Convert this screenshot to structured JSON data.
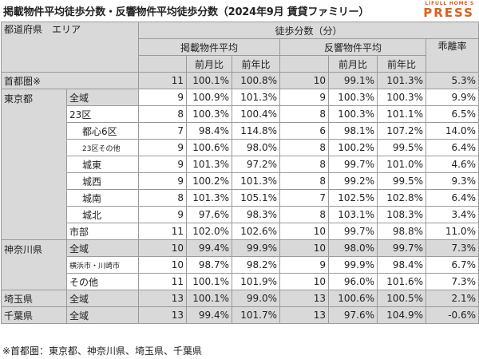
{
  "title": "掲載物件平均徒歩分数・反響物件平均徒歩分数（2024年9月 賃貸ファミリー）",
  "logo": {
    "line1": "LIFULL HOME'S",
    "line2": "PRESS"
  },
  "headers": {
    "region": "都道府県　エリア",
    "walk_minutes": "徒歩分数（分）",
    "listing_avg": "掲載物件平均",
    "response_avg": "反響物件平均",
    "divergence": "乖離率",
    "mom": "前月比",
    "yoy": "前年比"
  },
  "rows": [
    {
      "pref": "首都圏※",
      "area": "",
      "l": "11",
      "lm": "100.1%",
      "ly": "100.8%",
      "r": "10",
      "rm": "99.1%",
      "ry": "101.3%",
      "d": "5.3%"
    },
    {
      "pref": "東京都",
      "area": "全域",
      "l": "9",
      "lm": "100.9%",
      "ly": "101.3%",
      "r": "9",
      "rm": "100.3%",
      "ry": "100.3%",
      "d": "9.9%"
    },
    {
      "pref": "",
      "area": "23区",
      "l": "8",
      "lm": "100.3%",
      "ly": "100.4%",
      "r": "8",
      "rm": "100.3%",
      "ry": "101.1%",
      "d": "6.5%"
    },
    {
      "pref": "",
      "area": "都心6区",
      "l": "7",
      "lm": "98.4%",
      "ly": "114.8%",
      "r": "6",
      "rm": "98.1%",
      "ry": "107.2%",
      "d": "14.0%"
    },
    {
      "pref": "",
      "area": "23区その他",
      "l": "9",
      "lm": "100.6%",
      "ly": "98.0%",
      "r": "8",
      "rm": "100.2%",
      "ry": "99.5%",
      "d": "6.4%"
    },
    {
      "pref": "",
      "area": "城東",
      "l": "9",
      "lm": "101.3%",
      "ly": "97.2%",
      "r": "8",
      "rm": "99.7%",
      "ry": "101.0%",
      "d": "4.6%"
    },
    {
      "pref": "",
      "area": "城西",
      "l": "9",
      "lm": "100.2%",
      "ly": "101.3%",
      "r": "8",
      "rm": "99.2%",
      "ry": "99.5%",
      "d": "9.3%"
    },
    {
      "pref": "",
      "area": "城南",
      "l": "8",
      "lm": "101.3%",
      "ly": "105.1%",
      "r": "7",
      "rm": "102.5%",
      "ry": "102.8%",
      "d": "6.4%"
    },
    {
      "pref": "",
      "area": "城北",
      "l": "9",
      "lm": "97.6%",
      "ly": "98.3%",
      "r": "8",
      "rm": "103.1%",
      "ry": "108.3%",
      "d": "3.4%"
    },
    {
      "pref": "",
      "area": "市部",
      "l": "11",
      "lm": "102.0%",
      "ly": "102.6%",
      "r": "10",
      "rm": "99.7%",
      "ry": "98.8%",
      "d": "11.0%"
    },
    {
      "pref": "神奈川県",
      "area": "全域",
      "l": "10",
      "lm": "99.4%",
      "ly": "99.9%",
      "r": "10",
      "rm": "98.0%",
      "ry": "99.7%",
      "d": "7.3%"
    },
    {
      "pref": "",
      "area": "横浜市・川崎市",
      "l": "10",
      "lm": "98.7%",
      "ly": "98.2%",
      "r": "9",
      "rm": "99.9%",
      "ry": "98.4%",
      "d": "6.7%"
    },
    {
      "pref": "",
      "area": "その他",
      "l": "11",
      "lm": "100.1%",
      "ly": "101.9%",
      "r": "10",
      "rm": "96.0%",
      "ry": "101.6%",
      "d": "7.3%"
    },
    {
      "pref": "埼玉県",
      "area": "全域",
      "l": "13",
      "lm": "100.1%",
      "ly": "99.0%",
      "r": "13",
      "rm": "100.6%",
      "ry": "100.5%",
      "d": "2.1%"
    },
    {
      "pref": "千葉県",
      "area": "全域",
      "l": "13",
      "lm": "99.4%",
      "ly": "101.7%",
      "r": "13",
      "rm": "97.6%",
      "ry": "104.9%",
      "d": "-0.6%"
    }
  ],
  "footnote": "※首都圏：東京都、神奈川県、埼玉県、千葉県"
}
